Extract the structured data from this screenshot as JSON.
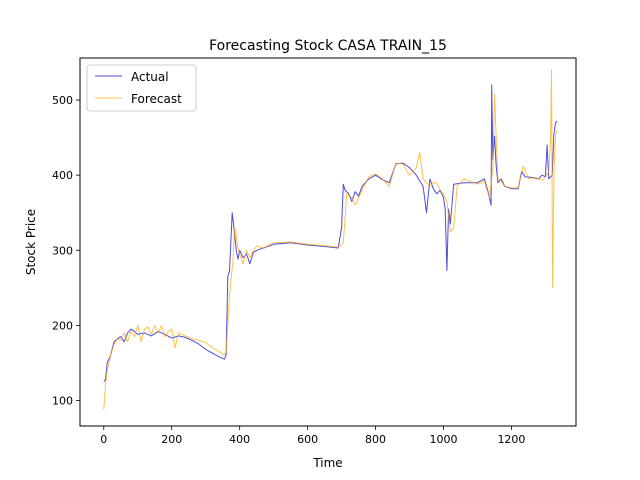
{
  "chart_data": {
    "type": "line",
    "title": "Forecasting Stock CASA TRAIN_15",
    "xlabel": "Time",
    "ylabel": "Stock Price",
    "xlim": [
      -70,
      1390
    ],
    "ylim": [
      66,
      556
    ],
    "xticks": [
      0,
      200,
      400,
      600,
      800,
      1000,
      1200
    ],
    "yticks": [
      100,
      200,
      300,
      400,
      500
    ],
    "grid": false,
    "legend_position": "upper-left",
    "series": [
      {
        "name": "Actual",
        "color": "#0000cc",
        "points": [
          [
            0,
            125
          ],
          [
            5,
            128
          ],
          [
            10,
            150
          ],
          [
            20,
            160
          ],
          [
            30,
            178
          ],
          [
            40,
            182
          ],
          [
            50,
            185
          ],
          [
            60,
            178
          ],
          [
            70,
            190
          ],
          [
            80,
            195
          ],
          [
            90,
            192
          ],
          [
            100,
            188
          ],
          [
            120,
            190
          ],
          [
            140,
            186
          ],
          [
            160,
            192
          ],
          [
            180,
            188
          ],
          [
            200,
            183
          ],
          [
            220,
            186
          ],
          [
            240,
            184
          ],
          [
            260,
            180
          ],
          [
            280,
            175
          ],
          [
            300,
            168
          ],
          [
            320,
            163
          ],
          [
            340,
            158
          ],
          [
            355,
            155
          ],
          [
            360,
            160
          ],
          [
            365,
            265
          ],
          [
            370,
            272
          ],
          [
            378,
            350
          ],
          [
            383,
            330
          ],
          [
            390,
            300
          ],
          [
            395,
            288
          ],
          [
            400,
            300
          ],
          [
            410,
            290
          ],
          [
            420,
            295
          ],
          [
            430,
            282
          ],
          [
            440,
            297
          ],
          [
            450,
            300
          ],
          [
            470,
            303
          ],
          [
            500,
            308
          ],
          [
            550,
            310
          ],
          [
            600,
            307
          ],
          [
            650,
            305
          ],
          [
            690,
            303
          ],
          [
            700,
            330
          ],
          [
            705,
            388
          ],
          [
            710,
            380
          ],
          [
            720,
            376
          ],
          [
            730,
            365
          ],
          [
            740,
            378
          ],
          [
            750,
            372
          ],
          [
            760,
            385
          ],
          [
            780,
            395
          ],
          [
            800,
            400
          ],
          [
            820,
            394
          ],
          [
            840,
            390
          ],
          [
            860,
            415
          ],
          [
            880,
            416
          ],
          [
            900,
            410
          ],
          [
            920,
            400
          ],
          [
            940,
            385
          ],
          [
            950,
            350
          ],
          [
            960,
            395
          ],
          [
            970,
            382
          ],
          [
            980,
            375
          ],
          [
            990,
            380
          ],
          [
            1000,
            370
          ],
          [
            1005,
            355
          ],
          [
            1010,
            273
          ],
          [
            1015,
            355
          ],
          [
            1020,
            335
          ],
          [
            1030,
            388
          ],
          [
            1060,
            390
          ],
          [
            1100,
            390
          ],
          [
            1120,
            395
          ],
          [
            1130,
            380
          ],
          [
            1140,
            360
          ],
          [
            1142,
            520
          ],
          [
            1145,
            420
          ],
          [
            1150,
            452
          ],
          [
            1155,
            412
          ],
          [
            1160,
            390
          ],
          [
            1170,
            395
          ],
          [
            1180,
            385
          ],
          [
            1200,
            382
          ],
          [
            1220,
            382
          ],
          [
            1230,
            405
          ],
          [
            1240,
            398
          ],
          [
            1260,
            397
          ],
          [
            1280,
            395
          ],
          [
            1290,
            400
          ],
          [
            1300,
            398
          ],
          [
            1305,
            440
          ],
          [
            1310,
            395
          ],
          [
            1320,
            400
          ],
          [
            1325,
            455
          ],
          [
            1330,
            470
          ],
          [
            1335,
            472
          ]
        ]
      },
      {
        "name": "Forecast",
        "color": "#ffa500",
        "points": [
          [
            0,
            88
          ],
          [
            5,
            120
          ],
          [
            10,
            140
          ],
          [
            20,
            160
          ],
          [
            30,
            175
          ],
          [
            40,
            182
          ],
          [
            50,
            180
          ],
          [
            60,
            190
          ],
          [
            70,
            178
          ],
          [
            80,
            192
          ],
          [
            90,
            185
          ],
          [
            100,
            200
          ],
          [
            110,
            178
          ],
          [
            120,
            195
          ],
          [
            130,
            198
          ],
          [
            140,
            188
          ],
          [
            150,
            200
          ],
          [
            160,
            190
          ],
          [
            170,
            200
          ],
          [
            180,
            185
          ],
          [
            190,
            192
          ],
          [
            200,
            195
          ],
          [
            210,
            170
          ],
          [
            220,
            190
          ],
          [
            240,
            186
          ],
          [
            260,
            182
          ],
          [
            280,
            180
          ],
          [
            300,
            177
          ],
          [
            320,
            170
          ],
          [
            340,
            165
          ],
          [
            355,
            160
          ],
          [
            360,
            165
          ],
          [
            370,
            240
          ],
          [
            380,
            285
          ],
          [
            385,
            330
          ],
          [
            390,
            320
          ],
          [
            395,
            303
          ],
          [
            400,
            295
          ],
          [
            410,
            282
          ],
          [
            420,
            300
          ],
          [
            430,
            290
          ],
          [
            440,
            300
          ],
          [
            450,
            306
          ],
          [
            470,
            303
          ],
          [
            500,
            310
          ],
          [
            550,
            311
          ],
          [
            600,
            308
          ],
          [
            650,
            306
          ],
          [
            690,
            304
          ],
          [
            705,
            310
          ],
          [
            715,
            375
          ],
          [
            730,
            370
          ],
          [
            740,
            360
          ],
          [
            760,
            380
          ],
          [
            780,
            398
          ],
          [
            800,
            402
          ],
          [
            820,
            395
          ],
          [
            840,
            385
          ],
          [
            860,
            416
          ],
          [
            880,
            415
          ],
          [
            900,
            400
          ],
          [
            920,
            410
          ],
          [
            930,
            430
          ],
          [
            940,
            395
          ],
          [
            950,
            390
          ],
          [
            960,
            385
          ],
          [
            970,
            390
          ],
          [
            980,
            390
          ],
          [
            990,
            380
          ],
          [
            1000,
            375
          ],
          [
            1010,
            365
          ],
          [
            1020,
            325
          ],
          [
            1030,
            330
          ],
          [
            1040,
            385
          ],
          [
            1060,
            395
          ],
          [
            1100,
            388
          ],
          [
            1120,
            392
          ],
          [
            1135,
            370
          ],
          [
            1145,
            410
          ],
          [
            1150,
            508
          ],
          [
            1155,
            450
          ],
          [
            1160,
            395
          ],
          [
            1170,
            392
          ],
          [
            1180,
            385
          ],
          [
            1200,
            383
          ],
          [
            1220,
            383
          ],
          [
            1235,
            412
          ],
          [
            1250,
            395
          ],
          [
            1270,
            397
          ],
          [
            1290,
            393
          ],
          [
            1300,
            397
          ],
          [
            1310,
            405
          ],
          [
            1315,
            445
          ],
          [
            1318,
            540
          ],
          [
            1321,
            250
          ],
          [
            1325,
            400
          ],
          [
            1330,
            455
          ],
          [
            1335,
            460
          ]
        ]
      }
    ]
  }
}
